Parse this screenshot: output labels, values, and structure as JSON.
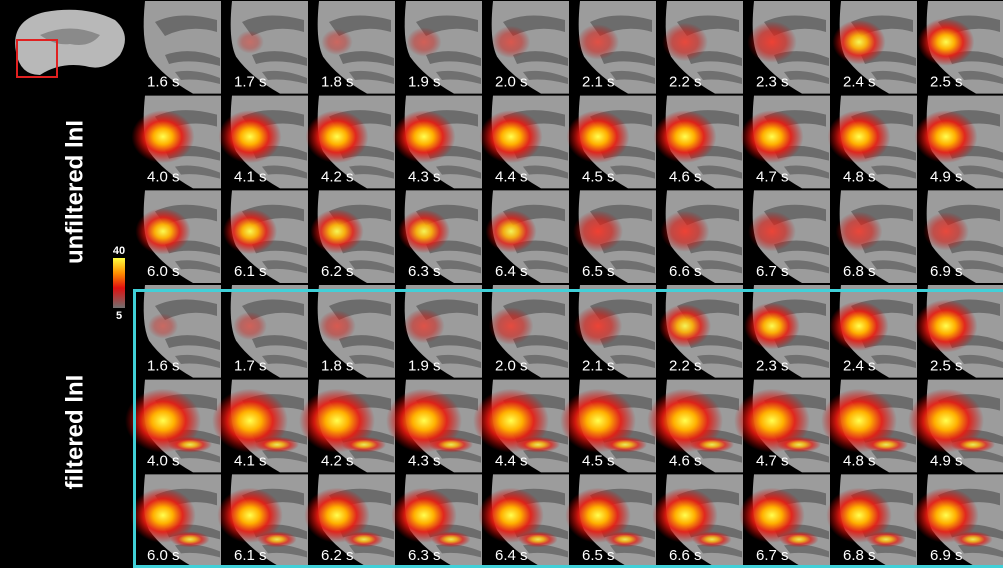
{
  "sections": [
    {
      "label": "unfiltered lnI",
      "rows": [
        [
          "1.6 s",
          "1.7 s",
          "1.8 s",
          "1.9 s",
          "2.0 s",
          "2.1 s",
          "2.2 s",
          "2.3 s",
          "2.4 s",
          "2.5 s"
        ],
        [
          "4.0 s",
          "4.1 s",
          "4.2 s",
          "4.3 s",
          "4.4 s",
          "4.5 s",
          "4.6 s",
          "4.7 s",
          "4.8 s",
          "4.9 s"
        ],
        [
          "6.0 s",
          "6.1 s",
          "6.2 s",
          "6.3 s",
          "6.4 s",
          "6.5 s",
          "6.6 s",
          "6.7 s",
          "6.8 s",
          "6.9 s"
        ]
      ]
    },
    {
      "label": "filtered lnI",
      "rows": [
        [
          "1.6 s",
          "1.7 s",
          "1.8 s",
          "1.9 s",
          "2.0 s",
          "2.1 s",
          "2.2 s",
          "2.3 s",
          "2.4 s",
          "2.5 s"
        ],
        [
          "4.0 s",
          "4.1 s",
          "4.2 s",
          "4.3 s",
          "4.4 s",
          "4.5 s",
          "4.6 s",
          "4.7 s",
          "4.8 s",
          "4.9 s"
        ],
        [
          "6.0 s",
          "6.1 s",
          "6.2 s",
          "6.3 s",
          "6.4 s",
          "6.5 s",
          "6.6 s",
          "6.7 s",
          "6.8 s",
          "6.9 s"
        ]
      ]
    }
  ],
  "colorbar": {
    "max": "40",
    "min": "5"
  }
}
